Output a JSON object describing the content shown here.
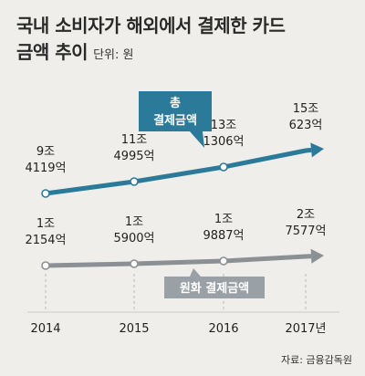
{
  "header": {
    "title_line1": "국내 소비자가 해외에서 결제한 카드",
    "title_line2": "금액 추이",
    "unit": "단위: 원"
  },
  "source": "자료: 금융감독원",
  "colors": {
    "total": "#2b7a99",
    "won": "#8a9094",
    "total_label_bg": "#2b7a99",
    "won_label_bg": "#9aa1a6"
  },
  "chart_data": {
    "type": "line",
    "categories": [
      "2014",
      "2015",
      "2016",
      "2017년"
    ],
    "series": [
      {
        "name": "총 결제금액",
        "label_line1": "총",
        "label_line2": "결제금액",
        "values": [
          94119,
          114995,
          131306,
          150623
        ],
        "value_labels": [
          [
            "9조",
            "4119억"
          ],
          [
            "11조",
            "4995억"
          ],
          [
            "13조",
            "1306억"
          ],
          [
            "15조",
            "623억"
          ]
        ]
      },
      {
        "name": "원화 결제금액",
        "label_line1": "원화 결제금액",
        "values": [
          12154,
          15900,
          19887,
          27577
        ],
        "value_labels": [
          [
            "1조",
            "2154억"
          ],
          [
            "1조",
            "5900억"
          ],
          [
            "1조",
            "9887억"
          ],
          [
            "2조",
            "7577억"
          ]
        ]
      }
    ],
    "value_unit": "억 원"
  }
}
